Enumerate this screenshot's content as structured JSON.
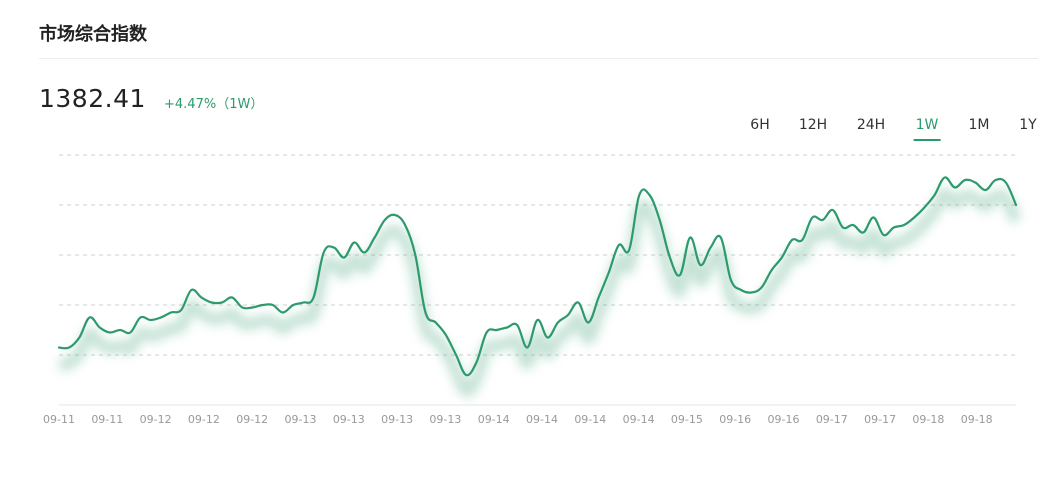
{
  "header": {
    "title": "市场综合指数"
  },
  "summary": {
    "value": "1382.41",
    "change": "+4.47%（1W）"
  },
  "ranges": {
    "items": [
      {
        "id": "6h",
        "label": "6H"
      },
      {
        "id": "12h",
        "label": "12H"
      },
      {
        "id": "24h",
        "label": "24H"
      },
      {
        "id": "1w",
        "label": "1W"
      },
      {
        "id": "1m",
        "label": "1M"
      },
      {
        "id": "1y",
        "label": "1Y"
      }
    ],
    "active": "1w"
  },
  "colors": {
    "line": "#2e9a6c",
    "accent": "#2e9a6c",
    "grid": "#cfcfcf",
    "tick": "#999999"
  },
  "chart_data": {
    "type": "line",
    "title": "",
    "xlabel": "",
    "ylabel": "",
    "grid": true,
    "y_gridlines": 5,
    "ylim": [
      0,
      100
    ],
    "x_ticks": [
      "09-11",
      "09-11",
      "09-12",
      "09-12",
      "09-12",
      "09-13",
      "09-13",
      "09-13",
      "09-13",
      "09-14",
      "09-14",
      "09-14",
      "09-14",
      "09-15",
      "09-16",
      "09-16",
      "09-17",
      "09-17",
      "09-18",
      "09-18"
    ],
    "series": [
      {
        "name": "",
        "points": [
          [
            0,
            23
          ],
          [
            1,
            23
          ],
          [
            2,
            27
          ],
          [
            3,
            35
          ],
          [
            4,
            31
          ],
          [
            5,
            29
          ],
          [
            6,
            30
          ],
          [
            7,
            29
          ],
          [
            8,
            35
          ],
          [
            9,
            34
          ],
          [
            10,
            35
          ],
          [
            11,
            37
          ],
          [
            12,
            38
          ],
          [
            13,
            46
          ],
          [
            14,
            43
          ],
          [
            15,
            41
          ],
          [
            16,
            41
          ],
          [
            17,
            43
          ],
          [
            18,
            39
          ],
          [
            19,
            39
          ],
          [
            20,
            40
          ],
          [
            21,
            40
          ],
          [
            22,
            37
          ],
          [
            23,
            40
          ],
          [
            24,
            41
          ],
          [
            25,
            43
          ],
          [
            26,
            61
          ],
          [
            27,
            63
          ],
          [
            28,
            59
          ],
          [
            29,
            65
          ],
          [
            30,
            61
          ],
          [
            31,
            67
          ],
          [
            32,
            74
          ],
          [
            33,
            76
          ],
          [
            34,
            72
          ],
          [
            35,
            60
          ],
          [
            36,
            37
          ],
          [
            37,
            33
          ],
          [
            38,
            28
          ],
          [
            39,
            20
          ],
          [
            40,
            12
          ],
          [
            41,
            17
          ],
          [
            42,
            29
          ],
          [
            43,
            30
          ],
          [
            44,
            31
          ],
          [
            45,
            32
          ],
          [
            46,
            23
          ],
          [
            47,
            34
          ],
          [
            48,
            27
          ],
          [
            49,
            33
          ],
          [
            50,
            36
          ],
          [
            51,
            41
          ],
          [
            52,
            33
          ],
          [
            53,
            43
          ],
          [
            54,
            53
          ],
          [
            55,
            64
          ],
          [
            56,
            62
          ],
          [
            57,
            84
          ],
          [
            58,
            84
          ],
          [
            59,
            74
          ],
          [
            60,
            59
          ],
          [
            61,
            52
          ],
          [
            62,
            67
          ],
          [
            63,
            56
          ],
          [
            64,
            63
          ],
          [
            65,
            67
          ],
          [
            66,
            50
          ],
          [
            67,
            46
          ],
          [
            68,
            45
          ],
          [
            69,
            47
          ],
          [
            70,
            54
          ],
          [
            71,
            59
          ],
          [
            72,
            66
          ],
          [
            73,
            66
          ],
          [
            74,
            75
          ],
          [
            75,
            74
          ],
          [
            76,
            78
          ],
          [
            77,
            71
          ],
          [
            78,
            72
          ],
          [
            79,
            69
          ],
          [
            80,
            75
          ],
          [
            81,
            68
          ],
          [
            82,
            71
          ],
          [
            83,
            72
          ],
          [
            84,
            75
          ],
          [
            85,
            79
          ],
          [
            86,
            84
          ],
          [
            87,
            91
          ],
          [
            88,
            87
          ],
          [
            89,
            90
          ],
          [
            90,
            89
          ],
          [
            91,
            86
          ],
          [
            92,
            90
          ],
          [
            93,
            89
          ],
          [
            94,
            80
          ]
        ]
      }
    ]
  }
}
